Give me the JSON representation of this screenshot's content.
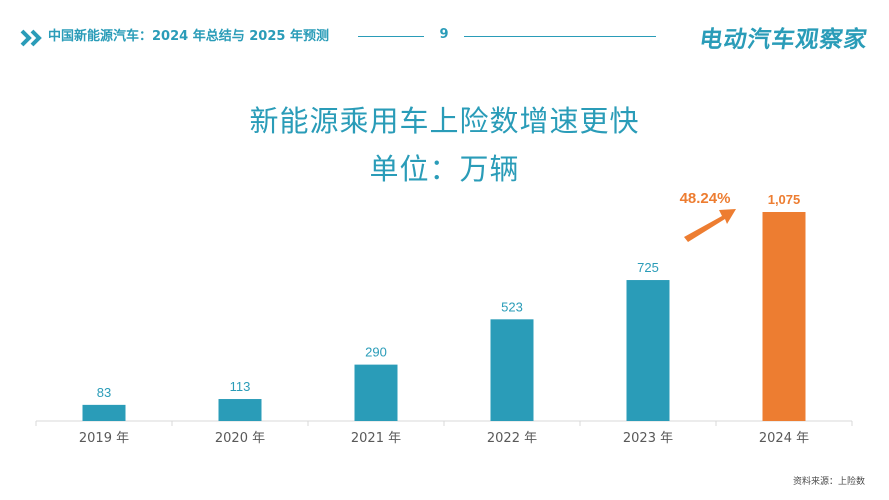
{
  "header": {
    "title": "中国新能源汽车：2024 年总结与 2025 年预测",
    "page_number": "9",
    "brand": "电动汽车观察家"
  },
  "colors": {
    "accent": "#2a9cb8",
    "highlight": "#ed7d31",
    "axis": "#d9d9d9",
    "tick_label": "#595959"
  },
  "chart_data": {
    "type": "bar",
    "title": "新能源乘用车上险数增速更快",
    "subtitle": "单位：万辆",
    "categories": [
      "2019 年",
      "2020 年",
      "2021 年",
      "2022 年",
      "2023 年",
      "2024 年"
    ],
    "values": [
      83,
      113,
      290,
      523,
      725,
      1075
    ],
    "value_labels": [
      "83",
      "113",
      "290",
      "523",
      "725",
      "1,075"
    ],
    "highlight_index": 5,
    "growth_annotation": "48.24%",
    "ylim": [
      0,
      1075
    ],
    "xlabel": "",
    "ylabel": "",
    "grid": false,
    "legend": "none"
  },
  "source": "资料来源：上险数"
}
